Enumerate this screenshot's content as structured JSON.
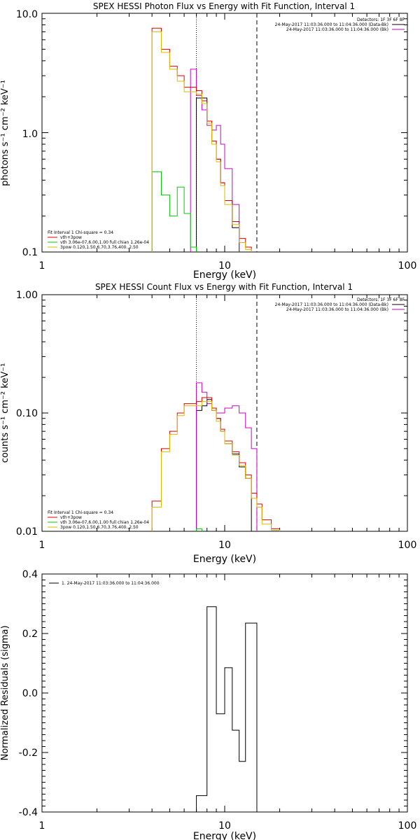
{
  "chart_data": [
    {
      "type": "line",
      "title": "SPEX HESSI Photon Flux vs Energy with Fit Function, Interval 1",
      "xlabel": "Energy (keV)",
      "ylabel": "photons s⁻¹ cm⁻² keV⁻¹",
      "xscale": "log",
      "yscale": "log",
      "xlim": [
        1,
        100
      ],
      "ylim": [
        0.1,
        10
      ],
      "xticks": [
        "1",
        "10",
        "100"
      ],
      "yticks": [
        "0.1",
        "1.0",
        "10.0"
      ],
      "vlines": [
        {
          "x": 7.0,
          "style": "dotted"
        },
        {
          "x": 15.0,
          "style": "dashed"
        }
      ],
      "header": {
        "detectors": "Detectors: 1F 3F 6F 8F",
        "entries": [
          {
            "text": "24-May-2017 11:03:36.000 to 11:04:36.000 (Data-Bk)",
            "color": "#000000"
          },
          {
            "text": "24-May-2017 11:03:36.000 to 11:04:36.000 (Bk)",
            "color": "#cc00cc"
          }
        ]
      },
      "legend": {
        "position": "bottom-left",
        "title": "Fit Interval  1     Chi-square = 0.34",
        "entries": [
          {
            "text": "vth+3pow",
            "color": "#dd0000"
          },
          {
            "text": "vth 3.06e-07,6.00,1.00  full chian 1.26e-04",
            "color": "#00cc00"
          },
          {
            "text": "3pow 0.120,1.50,6.70,3.76,400.,2.50",
            "color": "#ddbb00"
          }
        ]
      },
      "edges": [
        4.0,
        4.5,
        5.0,
        5.5,
        6.0,
        6.5,
        7.0,
        7.5,
        8.0,
        8.5,
        9.0,
        9.5,
        10.0,
        11.0,
        12.0,
        13.0,
        14.0,
        15.0,
        16.0,
        18.0,
        20.0
      ],
      "series": [
        {
          "name": "data",
          "color": "#000000",
          "values": [
            null,
            null,
            null,
            null,
            null,
            null,
            1.95,
            1.95,
            1.25,
            0.85,
            0.6,
            0.38,
            0.27,
            0.16,
            null,
            null,
            null,
            null,
            null,
            null
          ]
        },
        {
          "name": "bk",
          "color": "#cc00cc",
          "values": [
            null,
            null,
            null,
            null,
            null,
            3.4,
            2.05,
            1.55,
            1.15,
            1.05,
            1.15,
            0.8,
            0.5,
            0.25,
            null,
            null,
            null,
            null,
            null,
            null
          ]
        },
        {
          "name": "vth+3pow",
          "color": "#dd0000",
          "values": [
            7.5,
            5.0,
            3.6,
            3.0,
            2.4,
            2.4,
            2.25,
            1.85,
            1.25,
            0.85,
            0.6,
            0.38,
            0.27,
            0.18,
            0.13,
            0.11,
            null,
            null,
            null,
            null
          ]
        },
        {
          "name": "vth",
          "color": "#00cc00",
          "values": [
            0.47,
            0.3,
            0.2,
            0.35,
            0.21,
            0.11,
            null,
            null,
            null,
            null,
            null,
            null,
            null,
            null,
            null,
            null,
            null,
            null,
            null,
            null
          ]
        },
        {
          "name": "3pow",
          "color": "#ddbb00",
          "values": [
            7.0,
            4.7,
            3.4,
            2.7,
            2.2,
            2.2,
            2.1,
            1.75,
            1.2,
            0.8,
            0.57,
            0.36,
            0.25,
            0.17,
            0.12,
            0.105,
            null,
            null,
            null,
            null
          ]
        }
      ]
    },
    {
      "type": "line",
      "title": "SPEX HESSI Count Flux vs Energy with Fit Function, Interval 1",
      "xlabel": "Energy (keV)",
      "ylabel": "counts s⁻¹ cm⁻² keV⁻¹",
      "xscale": "log",
      "yscale": "log",
      "xlim": [
        1,
        100
      ],
      "ylim": [
        0.01,
        1
      ],
      "xticks": [
        "1",
        "10",
        "100"
      ],
      "yticks": [
        "0.01",
        "0.10",
        "1.00"
      ],
      "vlines": [
        {
          "x": 7.0,
          "style": "dotted"
        },
        {
          "x": 15.0,
          "style": "dashed"
        }
      ],
      "header": {
        "detectors": "Detectors: 1F 3F 6F 8F",
        "entries": [
          {
            "text": "24-May-2017 11:03:36.000 to 11:04:36.000 (Data-Bk)",
            "color": "#000000"
          },
          {
            "text": "24-May-2017 11:03:36.000 to 11:04:36.000 (Bk)",
            "color": "#cc00cc"
          }
        ]
      },
      "legend": {
        "position": "bottom-left",
        "title": "Fit Interval  1     Chi-square = 0.34",
        "entries": [
          {
            "text": "vth+3pow",
            "color": "#dd0000"
          },
          {
            "text": "vth 3.06e-07,6.00,1.00  full chian 1.26e-04",
            "color": "#00cc00"
          },
          {
            "text": "3pow 0.120,1.50,6.70,3.76,400.,2.50",
            "color": "#ddbb00"
          }
        ]
      },
      "edges": [
        4.0,
        4.5,
        5.0,
        5.5,
        6.0,
        6.5,
        7.0,
        7.5,
        8.0,
        8.5,
        9.0,
        9.5,
        10.0,
        11.0,
        12.0,
        13.0,
        14.0,
        15.0,
        16.0,
        18.0,
        20.0
      ],
      "series": [
        {
          "name": "data",
          "color": "#000000",
          "values": [
            null,
            null,
            null,
            null,
            null,
            null,
            0.105,
            0.115,
            0.13,
            0.105,
            0.09,
            0.07,
            0.055,
            0.045,
            0.035,
            0.028,
            null,
            null,
            null,
            null
          ]
        },
        {
          "name": "bk",
          "color": "#cc00cc",
          "values": [
            null,
            null,
            null,
            null,
            null,
            null,
            0.18,
            0.15,
            0.12,
            0.11,
            0.1,
            0.1,
            0.11,
            0.115,
            0.1,
            0.075,
            0.05,
            null,
            null,
            null
          ]
        },
        {
          "name": "vth+3pow",
          "color": "#dd0000",
          "values": [
            0.018,
            0.05,
            0.07,
            0.1,
            0.12,
            0.12,
            0.125,
            0.135,
            0.135,
            0.11,
            0.09,
            0.073,
            0.058,
            0.047,
            0.038,
            0.03,
            0.021,
            0.017,
            0.0125,
            0.0105
          ]
        },
        {
          "name": "vth",
          "color": "#00cc00",
          "values": [
            null,
            null,
            null,
            null,
            null,
            null,
            0.0105,
            null,
            null,
            null,
            null,
            null,
            null,
            null,
            null,
            null,
            null,
            null,
            null,
            null
          ]
        },
        {
          "name": "3pow",
          "color": "#ddbb00",
          "values": [
            0.016,
            0.047,
            0.066,
            0.095,
            0.115,
            0.115,
            0.115,
            0.125,
            0.125,
            0.105,
            0.085,
            0.07,
            0.055,
            0.044,
            0.036,
            0.028,
            0.019,
            0.016,
            0.0115,
            0.0102
          ]
        }
      ]
    },
    {
      "type": "line",
      "title": "",
      "xlabel": "Energy (keV)",
      "ylabel": "Normalized Residuals (sigma)",
      "xscale": "log",
      "yscale": "linear",
      "xlim": [
        1,
        100
      ],
      "ylim": [
        -0.4,
        0.4
      ],
      "xticks": [
        "1",
        "10",
        "100"
      ],
      "yticks": [
        "-0.4",
        "-0.2",
        "0.0",
        "0.2",
        "0.4"
      ],
      "legend": {
        "position": "top-left",
        "entries": [
          {
            "text": "1. 24-May-2017 11:03:36.000 to 11:04:36.000",
            "color": "#000000"
          }
        ]
      },
      "edges": [
        7.0,
        8.0,
        9.0,
        10.0,
        11.0,
        12.0,
        13.0,
        15.0
      ],
      "series": [
        {
          "name": "residuals",
          "color": "#000000",
          "values": [
            -0.345,
            0.29,
            -0.07,
            0.085,
            -0.125,
            -0.23,
            0.235
          ]
        }
      ]
    }
  ]
}
